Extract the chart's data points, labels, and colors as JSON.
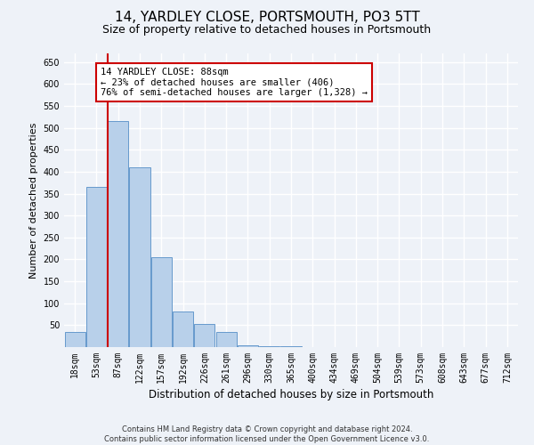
{
  "title": "14, YARDLEY CLOSE, PORTSMOUTH, PO3 5TT",
  "subtitle": "Size of property relative to detached houses in Portsmouth",
  "xlabel": "Distribution of detached houses by size in Portsmouth",
  "ylabel": "Number of detached properties",
  "bar_values": [
    35,
    365,
    515,
    410,
    205,
    82,
    52,
    35,
    5,
    3,
    2,
    1,
    1,
    1,
    1,
    1,
    1,
    1,
    1,
    1,
    1
  ],
  "bar_labels": [
    "18sqm",
    "53sqm",
    "87sqm",
    "122sqm",
    "157sqm",
    "192sqm",
    "226sqm",
    "261sqm",
    "296sqm",
    "330sqm",
    "365sqm",
    "400sqm",
    "434sqm",
    "469sqm",
    "504sqm",
    "539sqm",
    "573sqm",
    "608sqm",
    "643sqm",
    "677sqm",
    "712sqm"
  ],
  "bar_color": "#b8d0ea",
  "bar_edge_color": "#6699cc",
  "red_line_index": 2,
  "ylim": [
    0,
    670
  ],
  "yticks": [
    50,
    100,
    150,
    200,
    250,
    300,
    350,
    400,
    450,
    500,
    550,
    600,
    650
  ],
  "annotation_text": "14 YARDLEY CLOSE: 88sqm\n← 23% of detached houses are smaller (406)\n76% of semi-detached houses are larger (1,328) →",
  "annotation_box_color": "#ffffff",
  "annotation_box_edge_color": "#cc0000",
  "vline_color": "#cc0000",
  "footer_text": "Contains HM Land Registry data © Crown copyright and database right 2024.\nContains public sector information licensed under the Open Government Licence v3.0.",
  "background_color": "#eef2f8",
  "grid_color": "#ffffff",
  "title_fontsize": 11,
  "subtitle_fontsize": 9,
  "tick_fontsize": 7,
  "ylabel_fontsize": 8,
  "xlabel_fontsize": 8.5,
  "footer_fontsize": 6,
  "annotation_fontsize": 7.5
}
